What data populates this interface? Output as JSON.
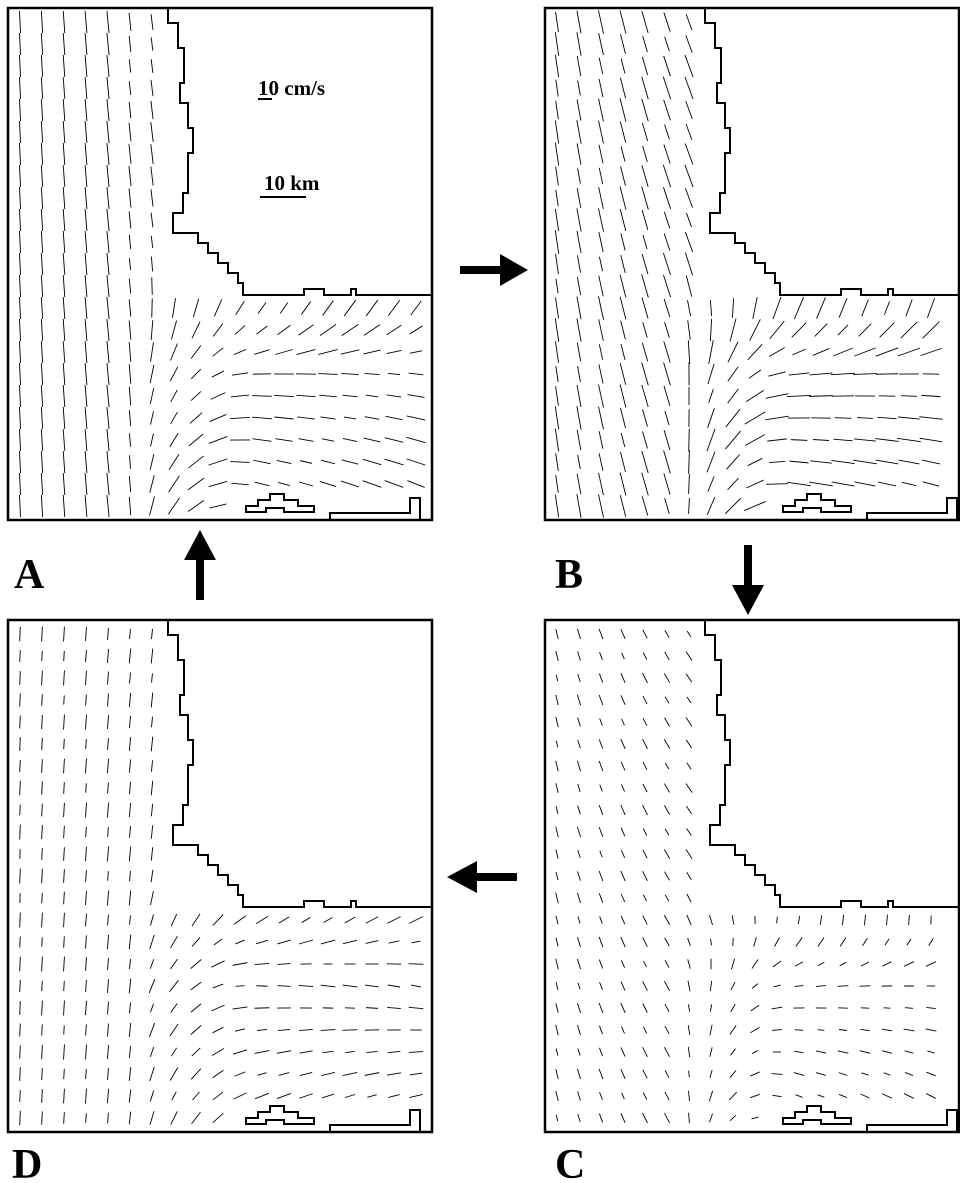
{
  "panels": [
    {
      "label": "A"
    },
    {
      "label": "B"
    },
    {
      "label": "C"
    },
    {
      "label": "D"
    }
  ],
  "legend": {
    "velocity_scale": "10 cm/s",
    "distance_scale": "10 km"
  }
}
